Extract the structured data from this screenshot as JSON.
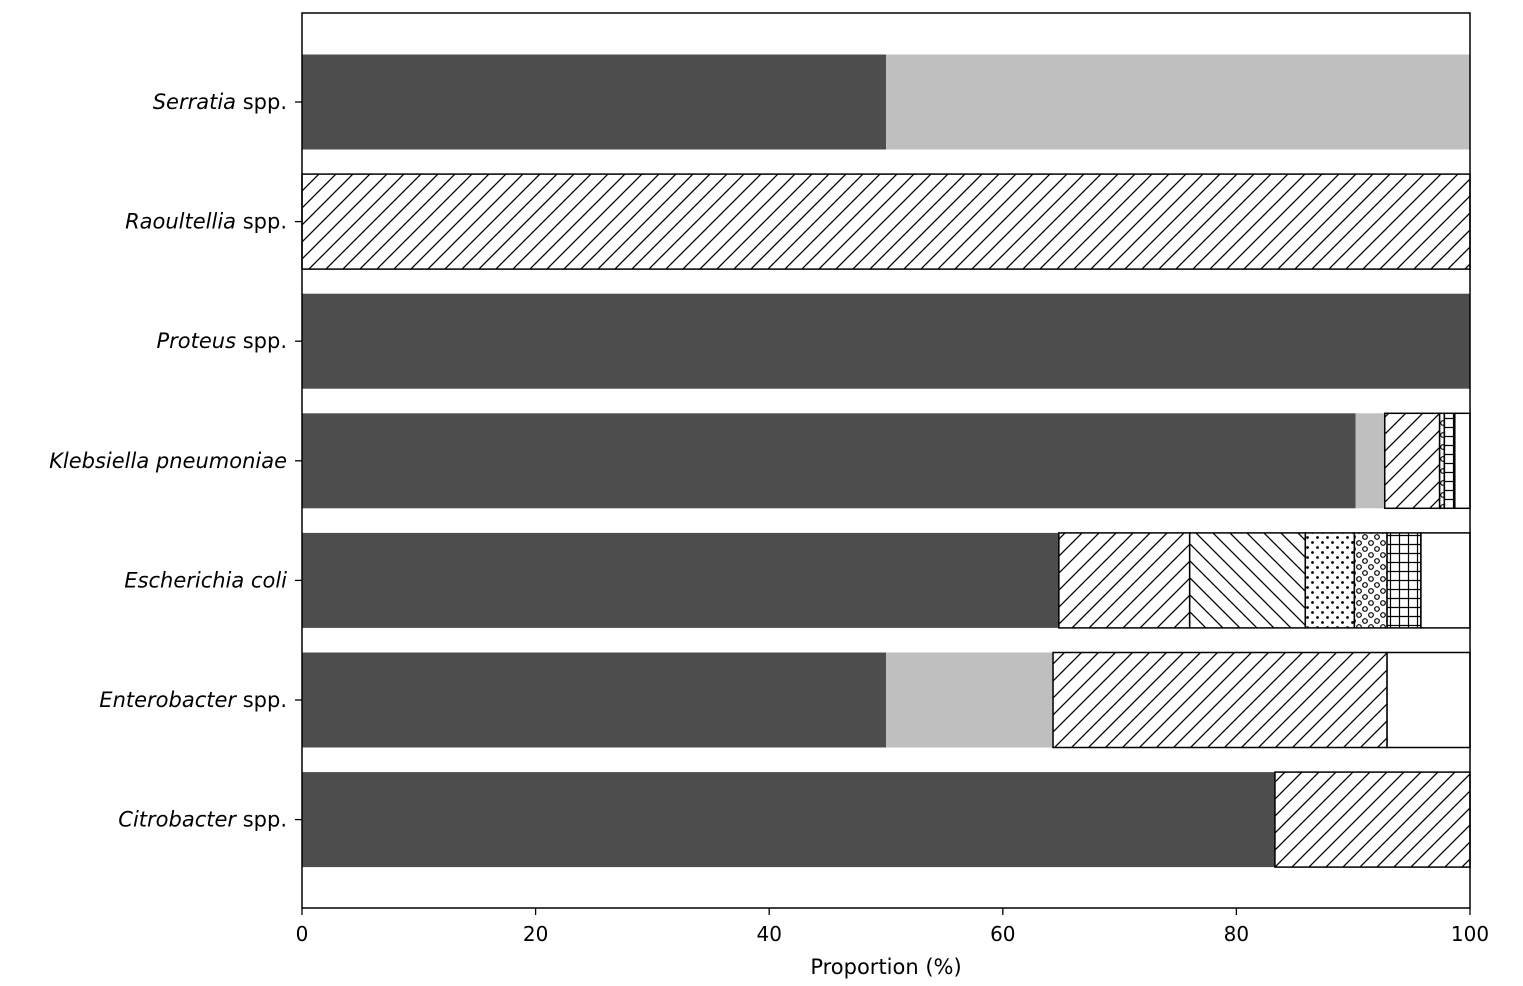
{
  "chart_data": {
    "type": "bar",
    "orientation": "horizontal",
    "stacked": true,
    "title": "",
    "xlabel": "Proportion (%)",
    "ylabel": "",
    "xlim": [
      0,
      100
    ],
    "xticks": [
      0,
      20,
      40,
      60,
      80,
      100
    ],
    "grid": false,
    "categories": [
      {
        "italic": "Serratia",
        "suffix": " spp."
      },
      {
        "italic": "Raoultellia",
        "suffix": " spp."
      },
      {
        "italic": "Proteus",
        "suffix": " spp."
      },
      {
        "italic": "Klebsiella pneumoniae",
        "suffix": ""
      },
      {
        "italic": "Escherichia coli",
        "suffix": ""
      },
      {
        "italic": "Enterobacter",
        "suffix": " spp."
      },
      {
        "italic": "Citrobacter",
        "suffix": " spp."
      }
    ],
    "series": [
      {
        "name": "s1",
        "fill": "#4d4d4d",
        "pattern": "solid",
        "values": [
          50,
          0,
          100,
          90.2,
          64.8,
          50,
          83.3
        ]
      },
      {
        "name": "s2",
        "fill": "#bfbfbf",
        "pattern": "solid",
        "values": [
          50,
          0,
          0,
          2.5,
          0,
          14.3,
          0
        ]
      },
      {
        "name": "s3",
        "fill": "#ffffff",
        "pattern": "diagonal-forward",
        "values": [
          0,
          100,
          0,
          4.7,
          11.2,
          28.6,
          16.7
        ]
      },
      {
        "name": "s4",
        "fill": "#ffffff",
        "pattern": "diagonal-back",
        "values": [
          0,
          0,
          0,
          0,
          9.9,
          0,
          0
        ]
      },
      {
        "name": "s5",
        "fill": "#ffffff",
        "pattern": "dots",
        "values": [
          0,
          0,
          0,
          0,
          4.2,
          0,
          0
        ]
      },
      {
        "name": "s6",
        "fill": "#ffffff",
        "pattern": "circles",
        "values": [
          0,
          0,
          0,
          0.4,
          2.8,
          0,
          0
        ]
      },
      {
        "name": "s7",
        "fill": "#ffffff",
        "pattern": "grid",
        "values": [
          0,
          0,
          0,
          0.9,
          2.9,
          0,
          0
        ]
      },
      {
        "name": "s8",
        "fill": "#ffffff",
        "pattern": "none",
        "values": [
          0,
          0,
          0,
          1.3,
          4.2,
          7.1,
          0
        ]
      }
    ]
  }
}
